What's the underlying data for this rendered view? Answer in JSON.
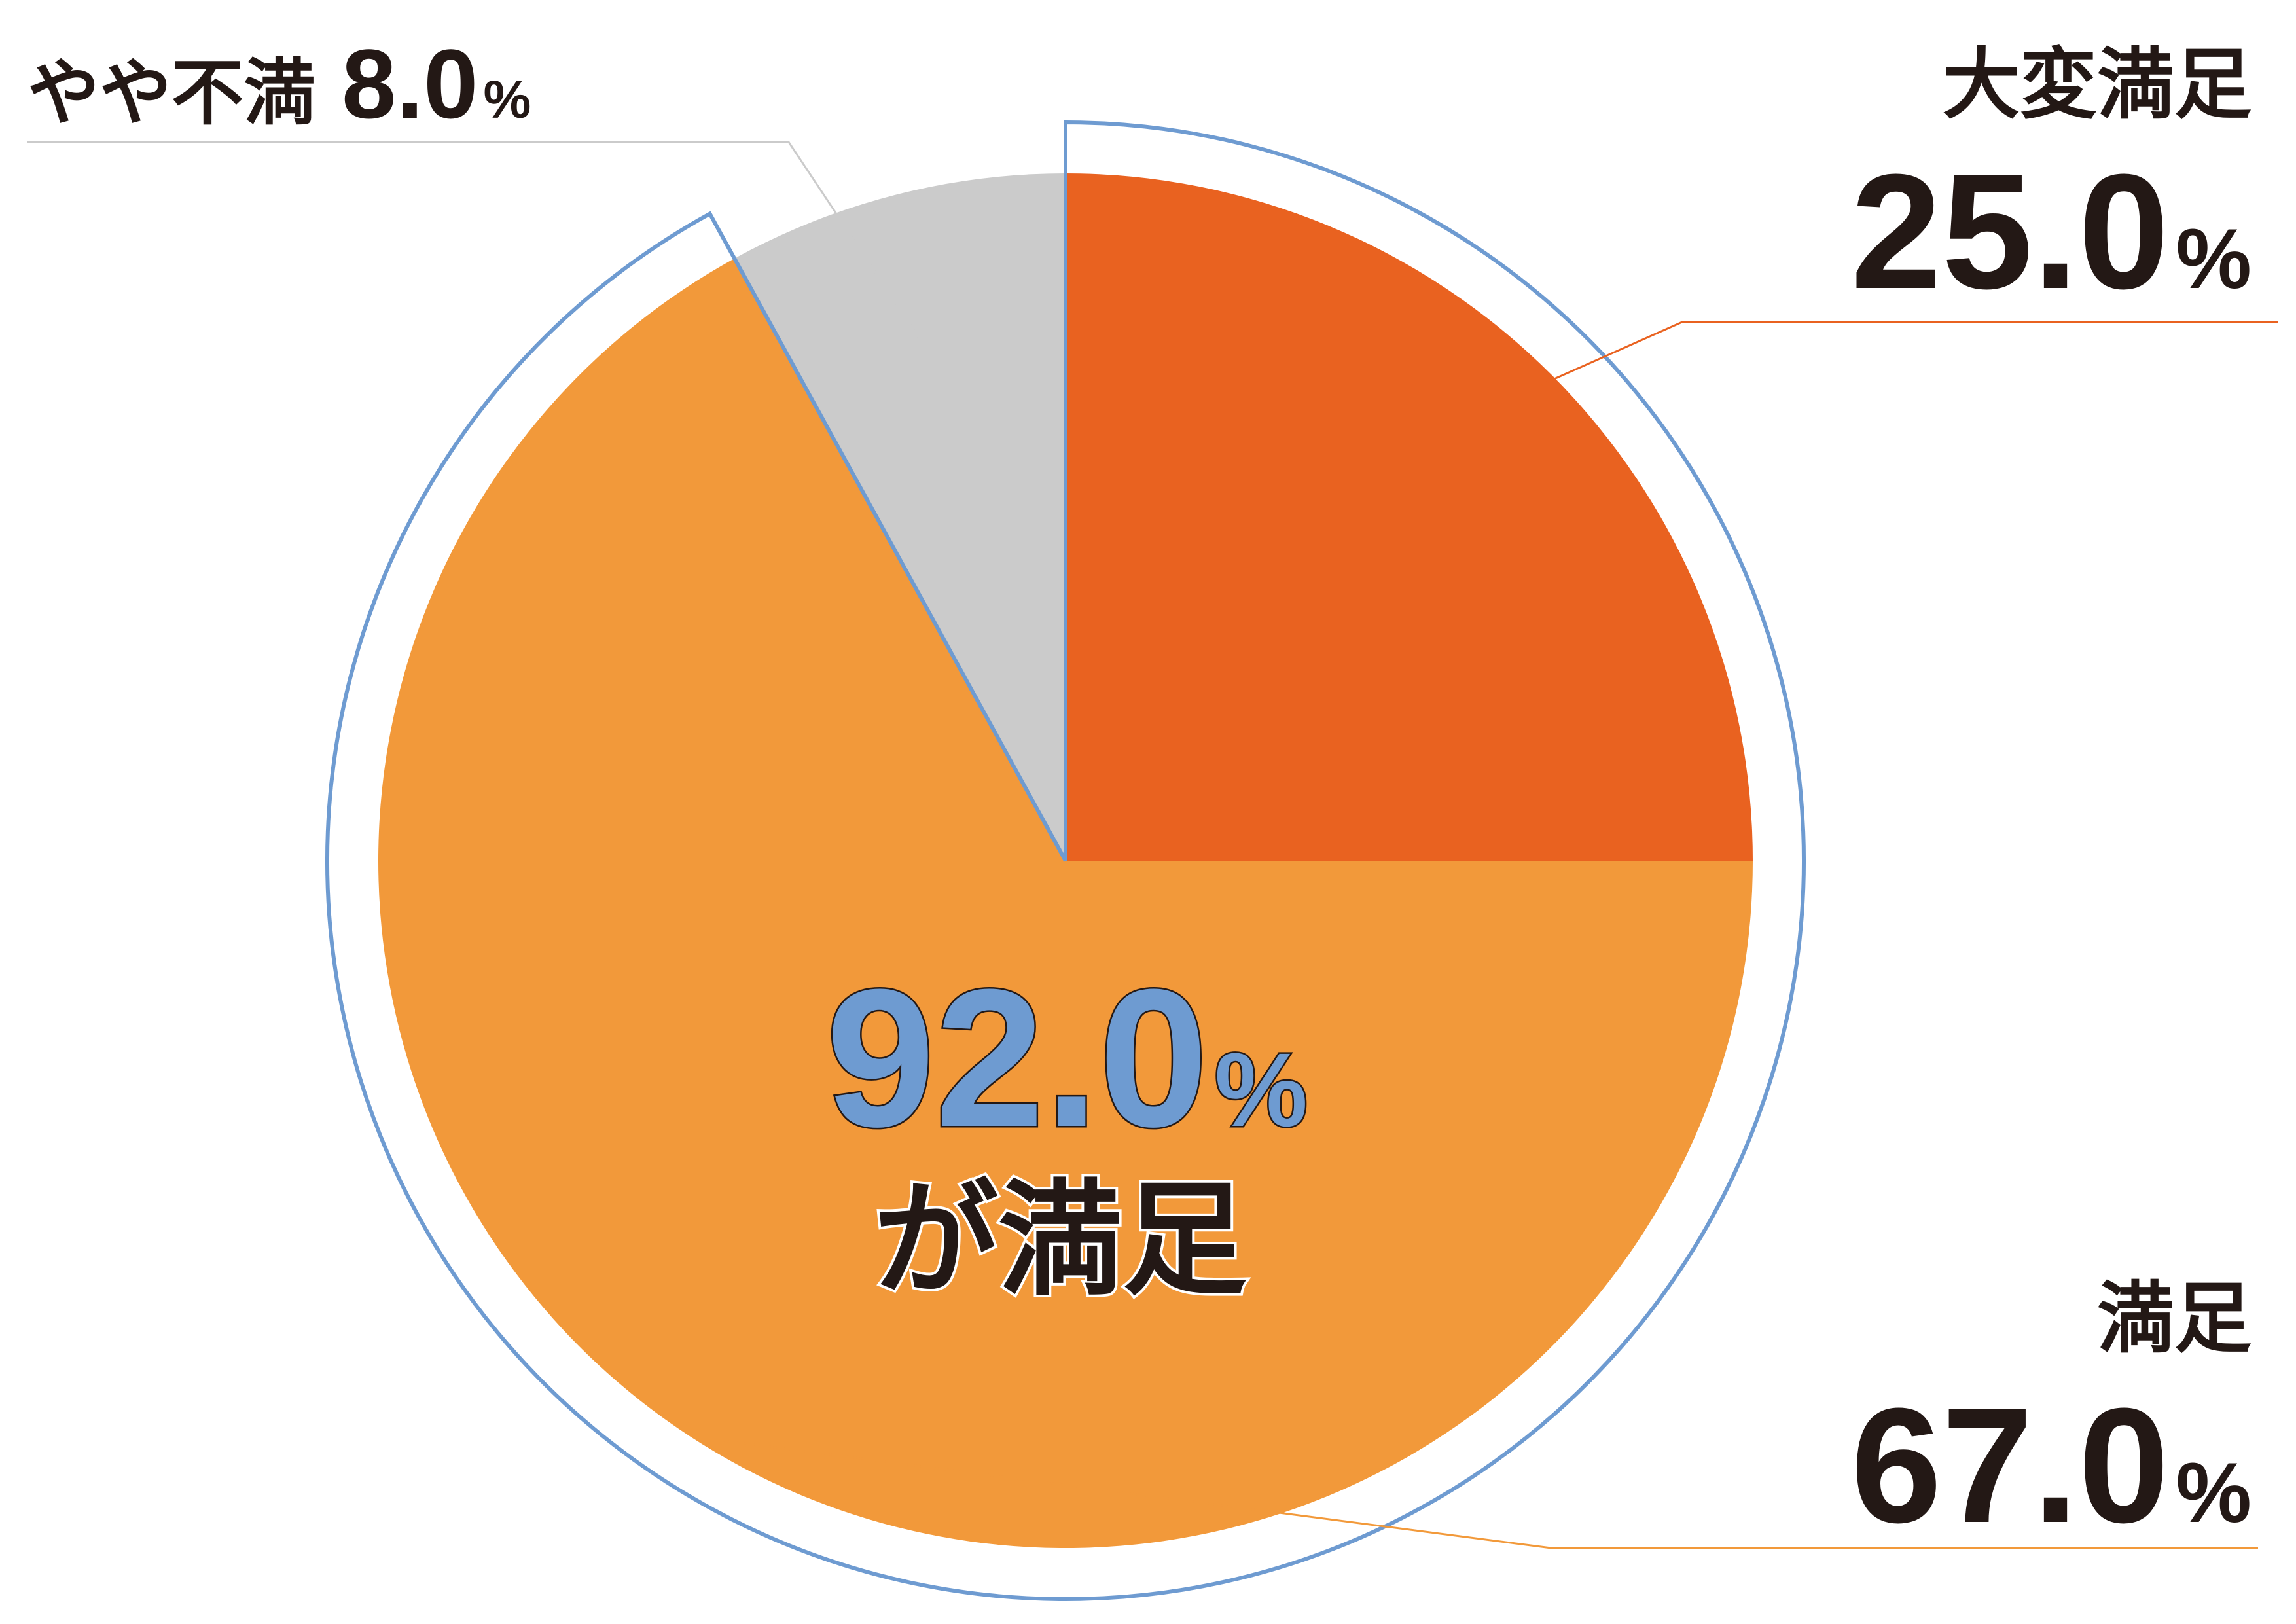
{
  "chart_data": {
    "type": "pie",
    "slices": [
      {
        "label": "大変満足",
        "value": 25.0,
        "display": "25.0",
        "unit": "%",
        "color": "#e96220"
      },
      {
        "label": "満足",
        "value": 67.0,
        "display": "67.0",
        "unit": "%",
        "color": "#f2993a"
      },
      {
        "label": "やや不満",
        "value": 8.0,
        "display": "8.0",
        "unit": "%",
        "color": "#cbcbcb"
      }
    ],
    "start": "12 o'clock",
    "direction": "clockwise",
    "highlight": {
      "value": "92.0",
      "unit": "%",
      "caption": "が満足",
      "outline_color": "#6e9bd1",
      "covers": [
        "大変満足",
        "満足"
      ]
    },
    "leader_line_colors": {
      "大変満足": "#e96220",
      "満足": "#f2993a",
      "やや不満": "#cbcbcb"
    }
  }
}
